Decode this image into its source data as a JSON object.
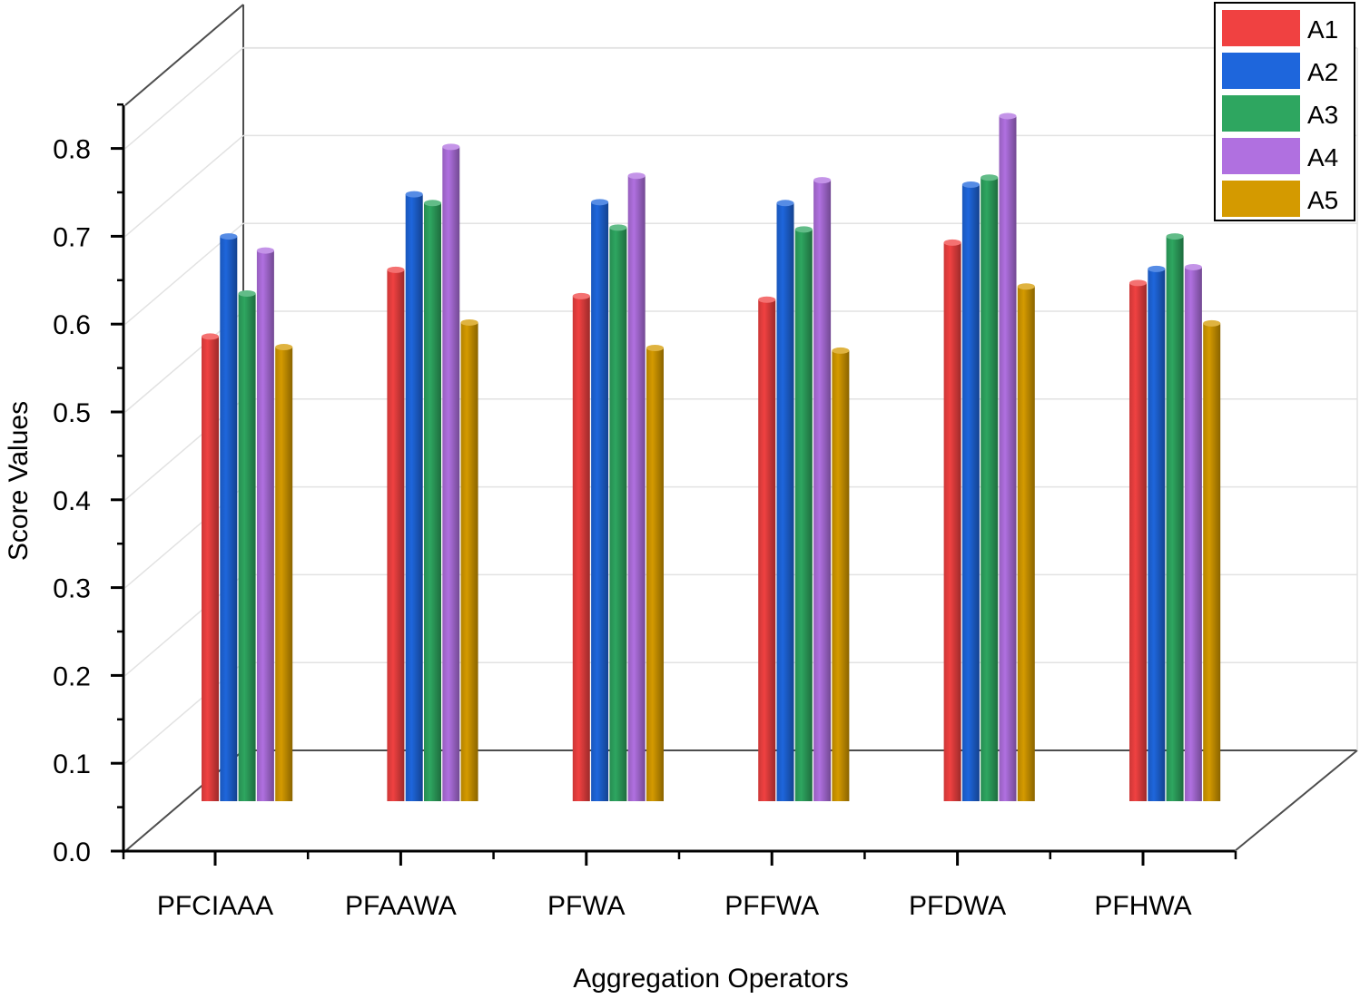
{
  "chart_data": {
    "type": "bar",
    "title": "",
    "xlabel": "Aggregation Operators",
    "ylabel": "Score Values",
    "ylim": [
      0,
      0.85
    ],
    "yticks": [
      "0.0",
      "0.1",
      "0.2",
      "0.3",
      "0.4",
      "0.5",
      "0.6",
      "0.7",
      "0.8"
    ],
    "categories": [
      "PFCIAAA",
      "PFAAWA",
      "PFWA",
      "PFFWA",
      "PFDWA",
      "PFHWA"
    ],
    "grid": true,
    "legend_position": "top-right",
    "series": [
      {
        "name": "A1",
        "color": "#f04141",
        "values": [
          0.529,
          0.605,
          0.575,
          0.571,
          0.636,
          0.59
        ]
      },
      {
        "name": "A2",
        "color": "#1e66dc",
        "values": [
          0.643,
          0.691,
          0.682,
          0.681,
          0.702,
          0.606
        ]
      },
      {
        "name": "A3",
        "color": "#2ea660",
        "values": [
          0.578,
          0.681,
          0.653,
          0.651,
          0.71,
          0.643
        ]
      },
      {
        "name": "A4",
        "color": "#b070e0",
        "values": [
          0.627,
          0.745,
          0.712,
          0.707,
          0.78,
          0.608
        ]
      },
      {
        "name": "A5",
        "color": "#d49a00",
        "values": [
          0.517,
          0.545,
          0.516,
          0.513,
          0.586,
          0.544
        ]
      }
    ]
  }
}
